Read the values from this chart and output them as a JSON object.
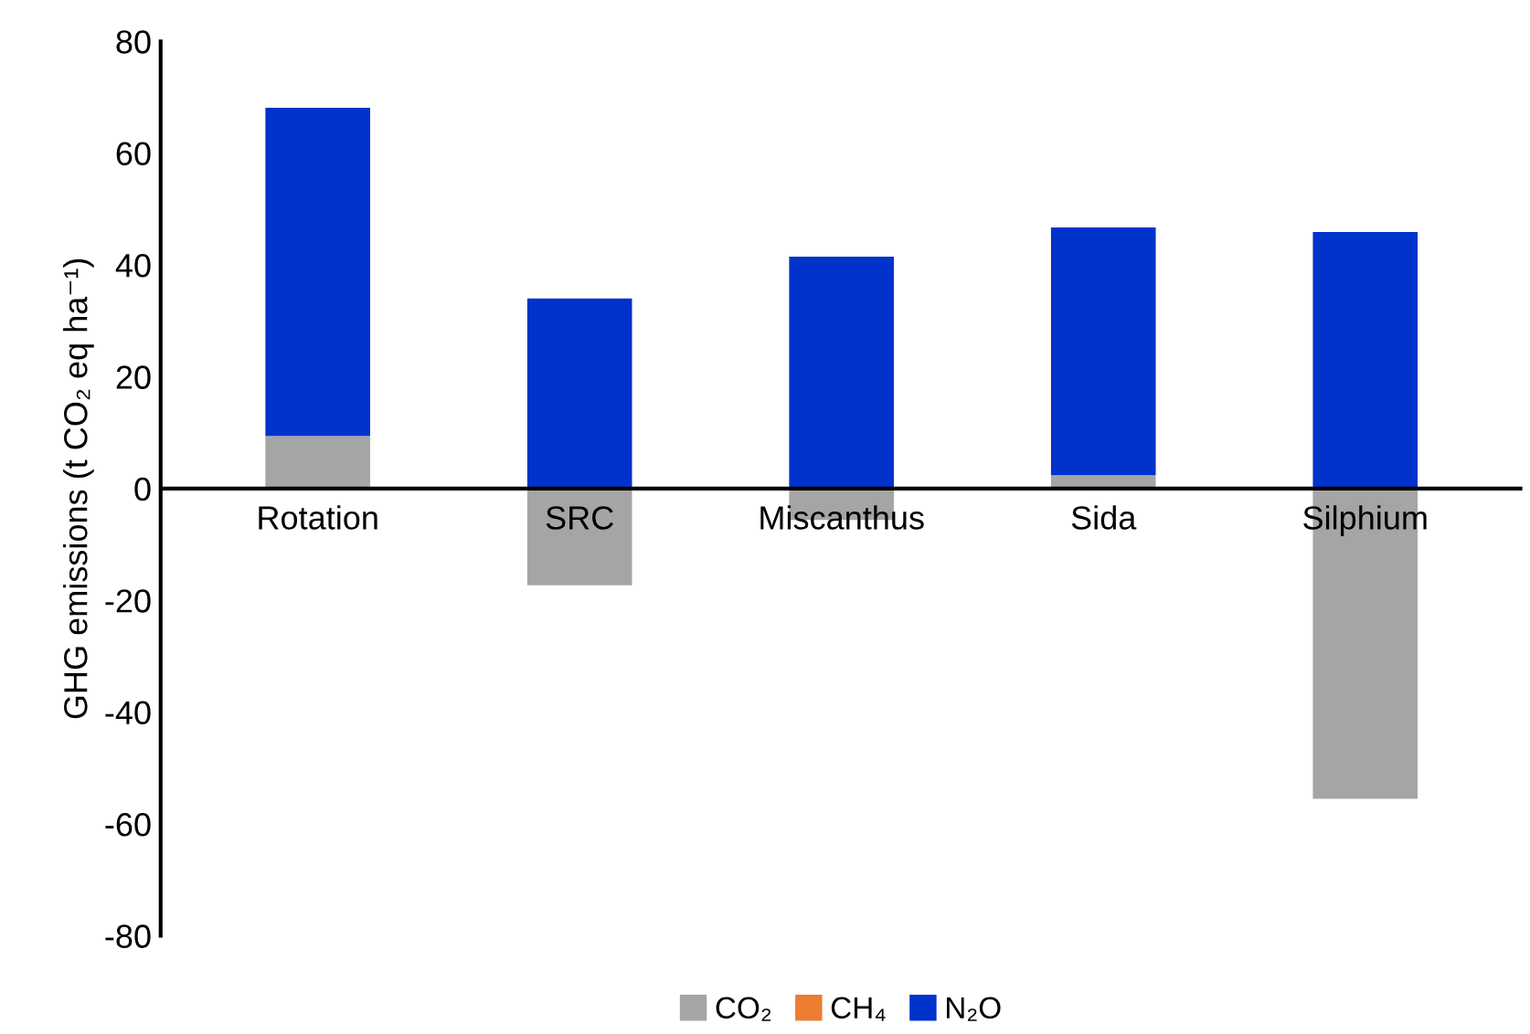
{
  "chart_data": {
    "type": "bar",
    "stacked": true,
    "ylabel": "GHG emissions (t CO₂ eq ha⁻¹)",
    "categories": [
      "Rotation",
      "SRC",
      "Miscanthus",
      "Sida",
      "Silphium"
    ],
    "series": [
      {
        "name": "CO₂",
        "color": "#a5a5a5",
        "values": [
          9.4,
          -17.3,
          -5.6,
          2.4,
          -55.5
        ]
      },
      {
        "name": "CH₄",
        "color": "#ed7d31",
        "values": [
          0,
          0,
          0,
          0,
          0
        ]
      },
      {
        "name": "N₂O",
        "color": "#0033cc",
        "values": [
          58.7,
          34.0,
          41.5,
          44.3,
          45.9
        ]
      }
    ],
    "ylim": [
      -80,
      80
    ],
    "yticks": [
      -80,
      -60,
      -40,
      -20,
      0,
      20,
      40,
      60,
      80
    ],
    "grid": false,
    "legend": "bottom"
  }
}
